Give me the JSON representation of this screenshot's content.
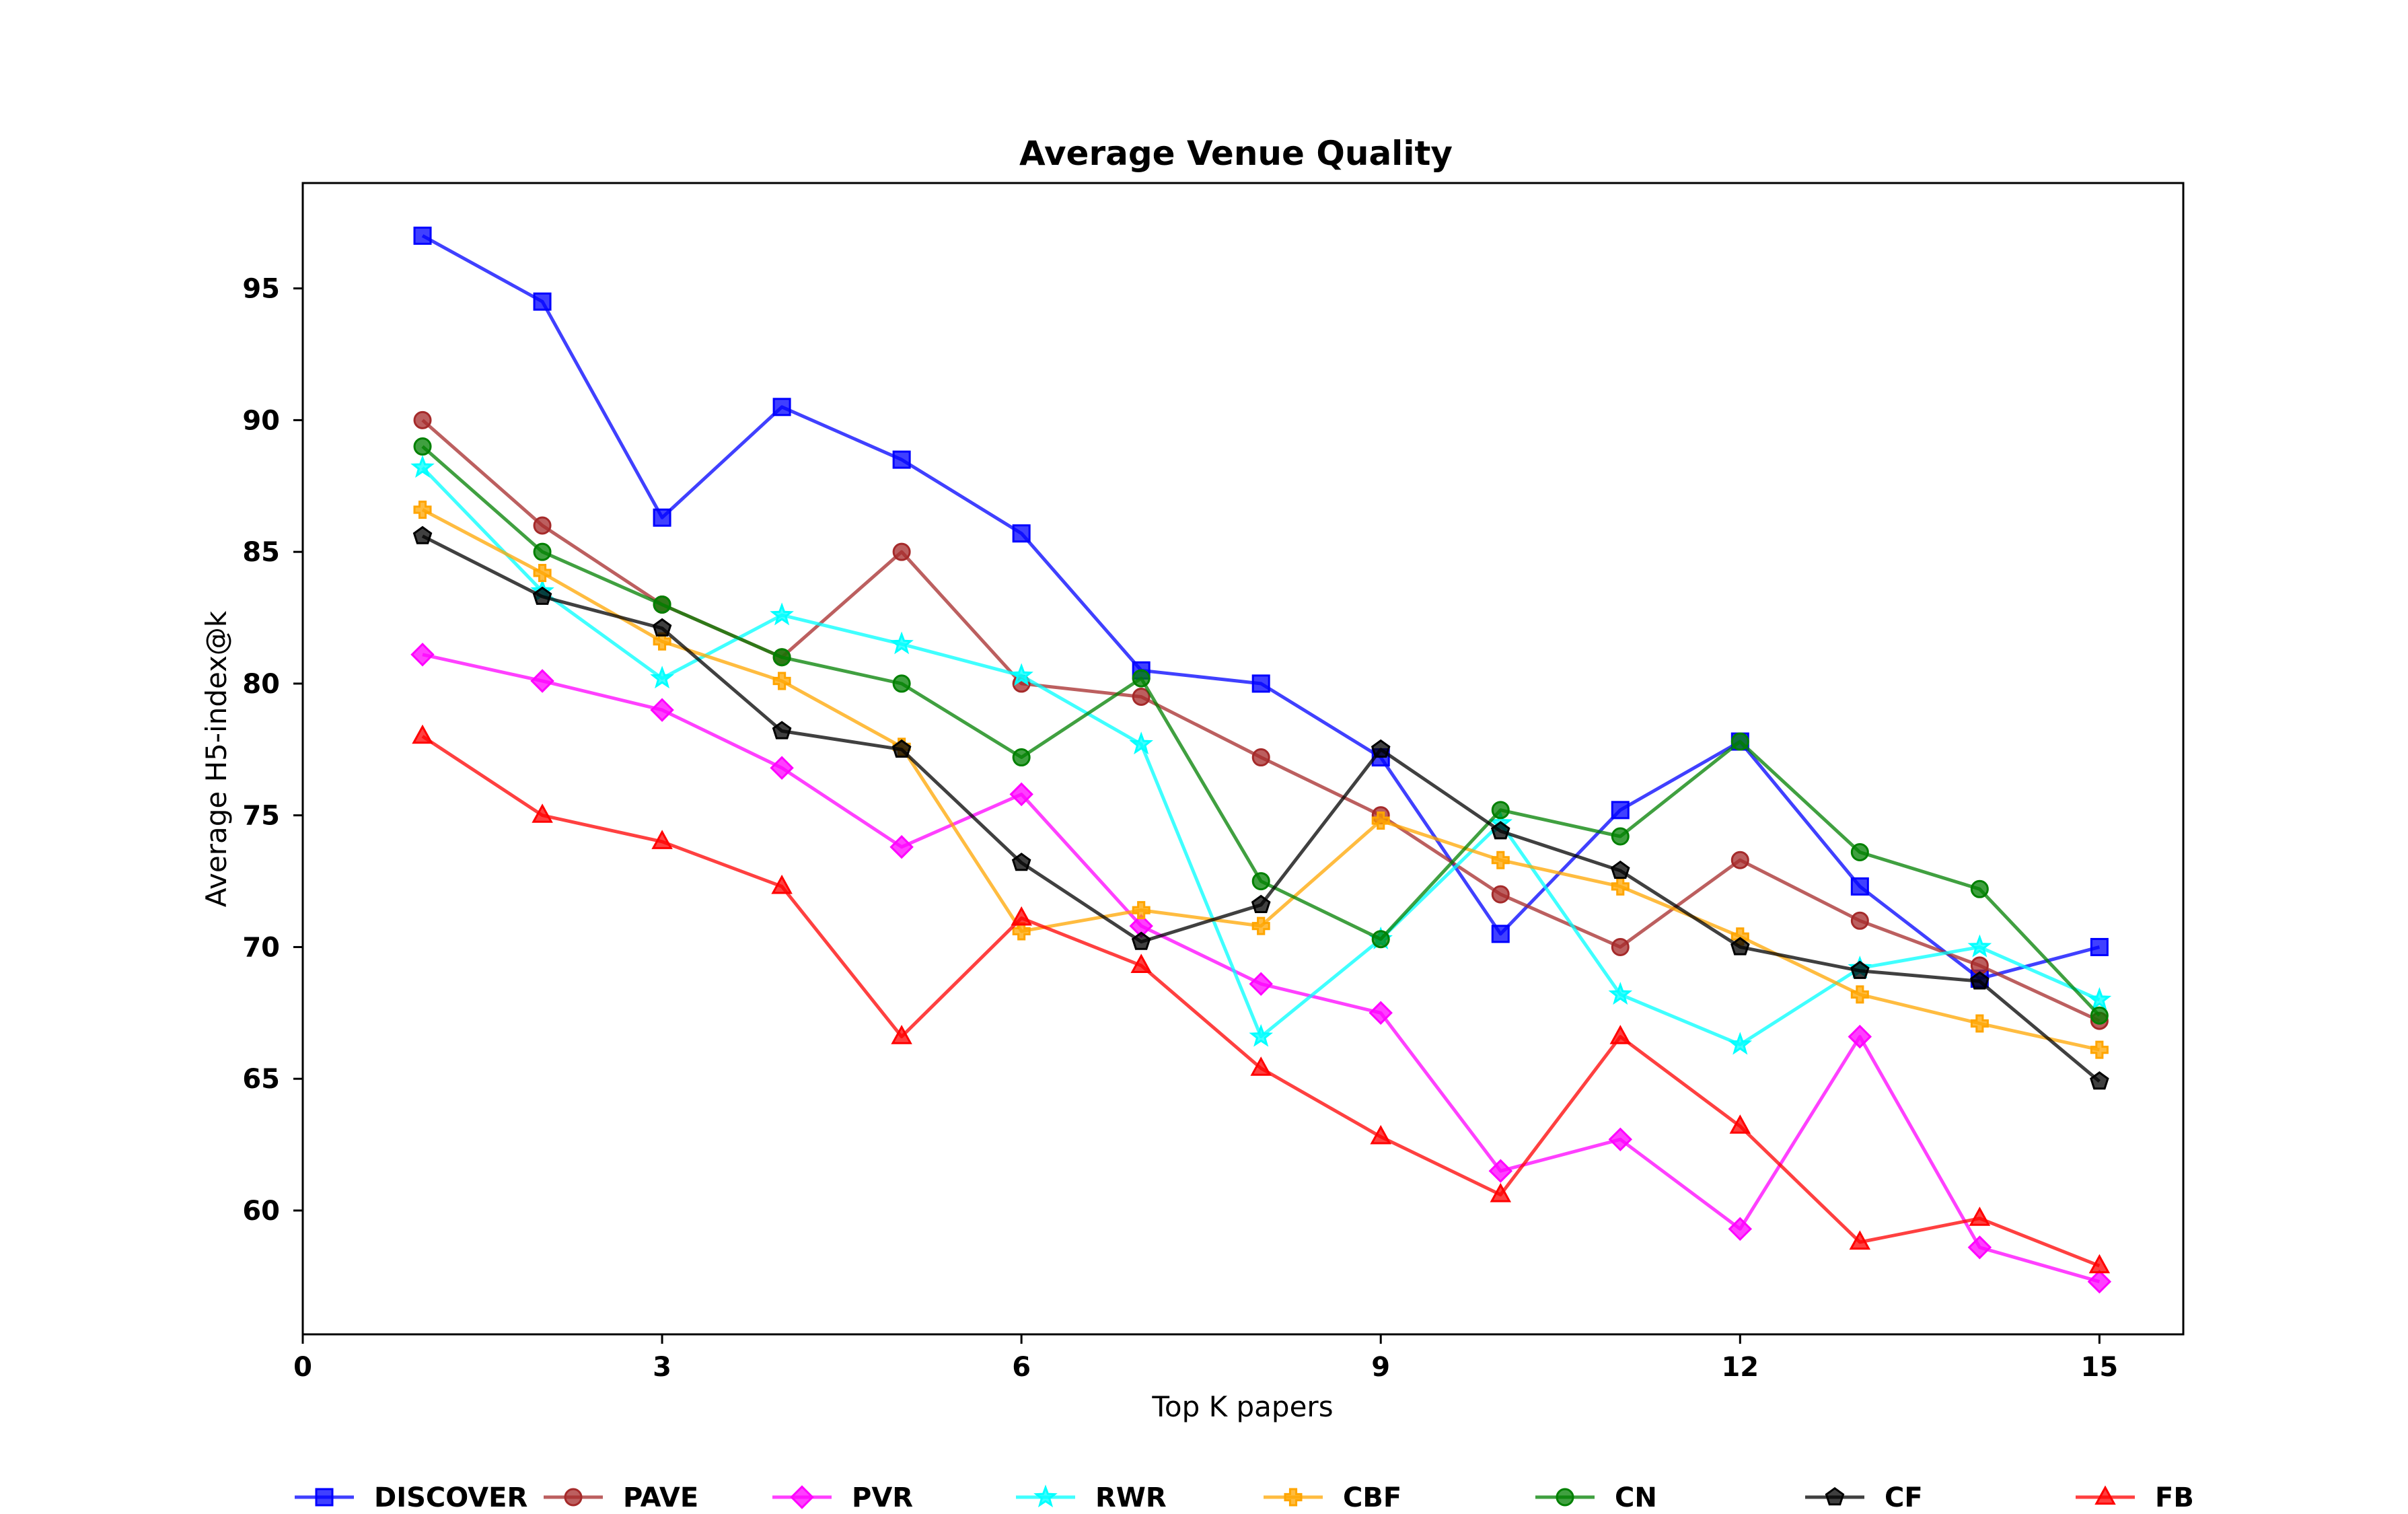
{
  "chart_data": {
    "type": "line",
    "title": "Average Venue Quality",
    "xlabel": "Top K papers",
    "ylabel": "Average H5-index@k",
    "xlim": [
      0,
      15.7
    ],
    "ylim": [
      55.3,
      99.0
    ],
    "xticks": [
      0,
      3,
      6,
      9,
      12,
      15
    ],
    "yticks": [
      60,
      65,
      70,
      75,
      80,
      85,
      90,
      95
    ],
    "x": [
      1,
      2,
      3,
      4,
      5,
      6,
      7,
      8,
      9,
      10,
      11,
      12,
      13,
      14,
      15
    ],
    "legend_position": "bottom",
    "series": [
      {
        "name": "DISCOVER",
        "color": "#0000ff",
        "marker": "square",
        "values": [
          97.0,
          94.5,
          86.3,
          90.5,
          88.5,
          85.7,
          80.5,
          80.0,
          77.2,
          70.5,
          75.2,
          77.8,
          72.3,
          68.8,
          70.0
        ]
      },
      {
        "name": "PAVE",
        "color": "#a52a2a",
        "marker": "circle",
        "values": [
          90.0,
          86.0,
          83.0,
          81.0,
          85.0,
          80.0,
          79.5,
          77.2,
          75.0,
          72.0,
          70.0,
          73.3,
          71.0,
          69.3,
          67.2
        ]
      },
      {
        "name": "PVR",
        "color": "#ff00ff",
        "marker": "diamond",
        "values": [
          81.1,
          80.1,
          79.0,
          76.8,
          73.8,
          75.8,
          70.8,
          68.6,
          67.5,
          61.5,
          62.7,
          59.3,
          66.6,
          58.6,
          57.3
        ]
      },
      {
        "name": "RWR",
        "color": "#00ffff",
        "marker": "star",
        "values": [
          88.2,
          83.5,
          80.2,
          82.6,
          81.5,
          80.3,
          77.7,
          66.6,
          70.3,
          74.7,
          68.2,
          66.3,
          69.2,
          70.0,
          68.0
        ]
      },
      {
        "name": "CBF",
        "color": "#ffa500",
        "marker": "plus",
        "values": [
          86.6,
          84.2,
          81.6,
          80.1,
          77.6,
          70.6,
          71.4,
          70.8,
          74.8,
          73.3,
          72.3,
          70.4,
          68.2,
          67.1,
          66.1
        ]
      },
      {
        "name": "CN",
        "color": "#008000",
        "marker": "circle",
        "values": [
          89.0,
          85.0,
          83.0,
          81.0,
          80.0,
          77.2,
          80.2,
          72.5,
          70.3,
          75.2,
          74.2,
          77.8,
          73.6,
          72.2,
          67.4
        ]
      },
      {
        "name": "CF",
        "color": "#000000",
        "marker": "pentagon",
        "values": [
          85.6,
          83.3,
          82.1,
          78.2,
          77.5,
          73.2,
          70.2,
          71.6,
          77.5,
          74.4,
          72.9,
          70.0,
          69.1,
          68.7,
          64.9
        ]
      },
      {
        "name": "FB",
        "color": "#ff0000",
        "marker": "triangle",
        "values": [
          78.0,
          75.0,
          74.0,
          72.3,
          66.6,
          71.1,
          69.3,
          65.4,
          62.8,
          60.6,
          66.6,
          63.2,
          58.8,
          59.7,
          57.9
        ]
      }
    ]
  }
}
